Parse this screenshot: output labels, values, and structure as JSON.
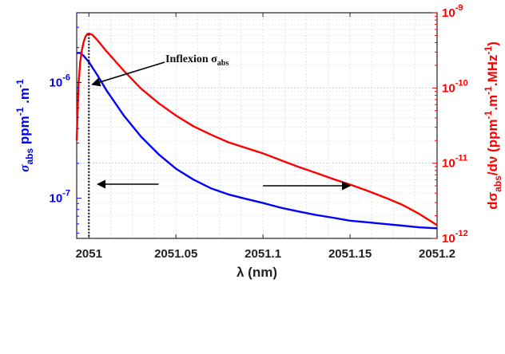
{
  "chart_data": {
    "type": "line",
    "x_ticks": [
      "2051",
      "2051.05",
      "2051.1",
      "2051.15",
      "2051.2"
    ],
    "x_tick_values": [
      2051,
      2051.05,
      2051.1,
      2051.15,
      2051.2
    ],
    "xlim": [
      2050.993,
      2051.2
    ],
    "xlabel": "λ (nm)",
    "y_left": {
      "label_main": "σ",
      "label_sub": "abs",
      "label_units": " ppm",
      "label_sup1": "-1",
      "label_mid": " .m",
      "label_sup2": "-1",
      "scale": "log",
      "ylim": [
        4.5e-08,
        4e-06
      ],
      "ticks": [
        {
          "base": "10",
          "exp": "-7",
          "value": 1e-07
        },
        {
          "base": "10",
          "exp": "-6",
          "value": 1e-06
        }
      ],
      "color": "#0000ff"
    },
    "y_right": {
      "label_main": "dσ",
      "label_sub": "abs",
      "label_mid": "/dν (ppm",
      "label_sup1": "-1",
      "label_mid2": ".m",
      "label_sup2": "-1",
      "label_end": ".MHz",
      "label_sup3": "-1",
      "label_close": ")",
      "scale": "log",
      "ylim": [
        1e-12,
        1e-09
      ],
      "ticks": [
        {
          "base": "10",
          "exp": "-12",
          "value": 1e-12
        },
        {
          "base": "10",
          "exp": "-11",
          "value": 1e-11
        },
        {
          "base": "10",
          "exp": "-10",
          "value": 1e-10
        },
        {
          "base": "10",
          "exp": "-9",
          "value": 1e-09
        }
      ],
      "color": "#ff0000"
    },
    "series": [
      {
        "axis": "left",
        "color": "#0000ff",
        "x": [
          2050.993,
          2050.995,
          2050.997,
          2051.0,
          2051.005,
          2051.01,
          2051.02,
          2051.03,
          2051.04,
          2051.05,
          2051.06,
          2051.07,
          2051.08,
          2051.09,
          2051.1,
          2051.11,
          2051.12,
          2051.13,
          2051.14,
          2051.15,
          2051.16,
          2051.17,
          2051.18,
          2051.19,
          2051.2
        ],
        "values": [
          1.8e-06,
          1.8e-06,
          1.7e-06,
          1.5e-06,
          1.15e-06,
          8.6e-07,
          5.2e-07,
          3.4e-07,
          2.4e-07,
          1.8e-07,
          1.45e-07,
          1.22e-07,
          1.08e-07,
          9.9e-08,
          9.1e-08,
          8.3e-08,
          7.7e-08,
          7.2e-08,
          6.8e-08,
          6.4e-08,
          6.2e-08,
          6e-08,
          5.8e-08,
          5.6e-08,
          5.5e-08
        ]
      },
      {
        "axis": "right",
        "color": "#ff0000",
        "x": [
          2050.993,
          2050.994,
          2050.995,
          2050.996,
          2050.997,
          2050.998,
          2050.999,
          2051.0,
          2051.002,
          2051.005,
          2051.01,
          2051.02,
          2051.03,
          2051.04,
          2051.05,
          2051.06,
          2051.07,
          2051.08,
          2051.09,
          2051.1,
          2051.11,
          2051.12,
          2051.13,
          2051.14,
          2051.15,
          2051.16,
          2051.17,
          2051.18,
          2051.19,
          2051.2
        ],
        "values": [
          2e-11,
          1.1e-10,
          2.2e-10,
          3.2e-10,
          4.1e-10,
          4.8e-10,
          5.2e-10,
          5.3e-10,
          5.1e-10,
          4.3e-10,
          3.1e-10,
          1.7e-10,
          9.8e-11,
          6.3e-11,
          4.3e-11,
          3.1e-11,
          2.4e-11,
          1.9e-11,
          1.6e-11,
          1.35e-11,
          1.1e-11,
          9e-12,
          7.5e-12,
          6.2e-12,
          5.2e-12,
          4.3e-12,
          3.5e-12,
          2.8e-12,
          2.1e-12,
          1.5e-12
        ]
      }
    ],
    "annotations": [
      {
        "text_main": "Inflexion σ",
        "text_sub": "abs",
        "x": 2051.0,
        "type": "vertical-dotted-line"
      }
    ],
    "arrows": [
      {
        "direction": "left",
        "points_to_axis": "left",
        "x_from": 2051.04,
        "x_to": 2051.005
      },
      {
        "direction": "right",
        "points_to_axis": "right",
        "x_from": 2051.1,
        "x_to": 2051.15
      }
    ],
    "grid": true
  }
}
